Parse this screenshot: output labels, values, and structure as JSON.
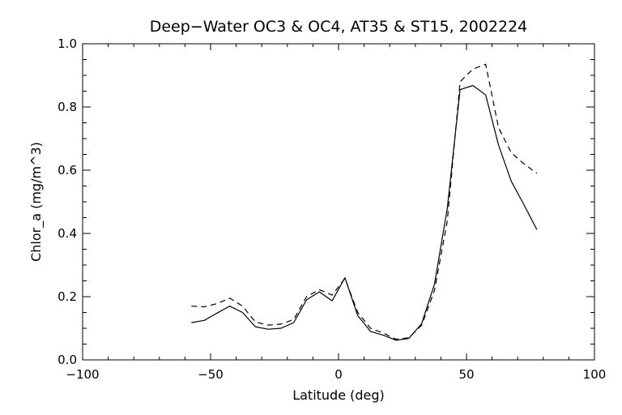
{
  "chart_data": {
    "type": "line",
    "title": "Deep−Water OC3 & OC4, AT35 & ST15, 2002224",
    "xlabel": "Latitude (deg)",
    "ylabel": "Chlor_a (mg/m^3)",
    "xlim": [
      -100,
      100
    ],
    "ylim": [
      0.0,
      1.0
    ],
    "xticks": [
      -100,
      -50,
      0,
      50,
      100
    ],
    "xtick_labels": [
      "−100",
      "−50",
      "0",
      "50",
      "100"
    ],
    "yticks": [
      0.0,
      0.2,
      0.4,
      0.6,
      0.8,
      1.0
    ],
    "ytick_labels": [
      "0.0",
      "0.2",
      "0.4",
      "0.6",
      "0.8",
      "1.0"
    ],
    "grid": false,
    "legend": "none",
    "series": [
      {
        "style": "solid",
        "color": "#000000",
        "x": [
          -57.5,
          -52.5,
          -47.5,
          -42.5,
          -37.5,
          -32.5,
          -27.5,
          -22.5,
          -17.5,
          -12.5,
          -7.5,
          -2.5,
          2.5,
          7.5,
          12.5,
          17.5,
          22.5,
          27.5,
          32.5,
          37.5,
          42.5,
          47.5,
          52.5,
          57.5,
          62.5,
          67.5,
          72.5,
          77.5
        ],
        "y": [
          0.118,
          0.125,
          0.148,
          0.17,
          0.15,
          0.105,
          0.097,
          0.1,
          0.118,
          0.19,
          0.215,
          0.187,
          0.26,
          0.14,
          0.09,
          0.078,
          0.062,
          0.068,
          0.115,
          0.24,
          0.48,
          0.855,
          0.868,
          0.838,
          0.68,
          0.565,
          0.49,
          0.412
        ]
      },
      {
        "style": "dashed",
        "color": "#000000",
        "x": [
          -57.5,
          -52.5,
          -47.5,
          -42.5,
          -37.5,
          -32.5,
          -27.5,
          -22.5,
          -17.5,
          -12.5,
          -7.5,
          -2.5,
          2.5,
          7.5,
          12.5,
          17.5,
          22.5,
          27.5,
          32.5,
          37.5,
          42.5,
          47.5,
          52.5,
          57.5,
          62.5,
          67.5,
          72.5,
          77.5
        ],
        "y": [
          0.17,
          0.168,
          0.178,
          0.195,
          0.17,
          0.12,
          0.11,
          0.113,
          0.128,
          0.2,
          0.222,
          0.205,
          0.258,
          0.15,
          0.1,
          0.085,
          0.065,
          0.07,
          0.11,
          0.22,
          0.44,
          0.88,
          0.92,
          0.935,
          0.735,
          0.655,
          0.62,
          0.59
        ]
      }
    ]
  }
}
